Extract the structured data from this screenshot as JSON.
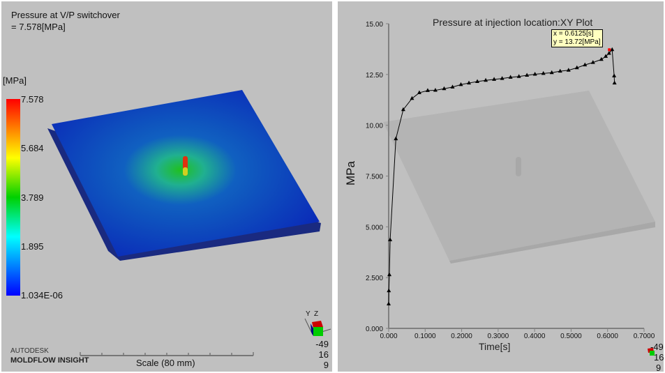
{
  "left": {
    "title": "Pressure at V/P switchover",
    "value": " = 7.578[MPa]",
    "unit": "[MPa]",
    "legend_ticks": [
      "7.578",
      "5.684",
      "3.789",
      "1.895",
      "1.034E-06"
    ],
    "brand_top": "AUTODESK",
    "brand_bottom": "MOLDFLOW INSIGHT",
    "scale_label": "Scale (80 mm)",
    "axis_labels": [
      "Y",
      "Z"
    ],
    "rotation": [
      "-49",
      "16",
      "9"
    ]
  },
  "right": {
    "rotation": [
      "-49",
      "16",
      "9"
    ],
    "tooltip": {
      "x": "x = 0.6125[s]",
      "y": "y = 13.72[MPa]"
    }
  },
  "chart_data": {
    "type": "line",
    "title": "Pressure at injection location:XY Plot",
    "xlabel": "Time[s]",
    "ylabel": "MPa",
    "xlim": [
      0,
      0.7
    ],
    "ylim": [
      0,
      15
    ],
    "xticks": [
      "0.000",
      "0.1000",
      "0.2000",
      "0.3000",
      "0.4000",
      "0.5000",
      "0.6000",
      "0.7000"
    ],
    "yticks": [
      "0.000",
      "2.500",
      "5.000",
      "7.500",
      "10.00",
      "12.50",
      "15.00"
    ],
    "marker": "triangle",
    "x": [
      0,
      0.0005,
      0.002,
      0.004,
      0.0197,
      0.04,
      0.064,
      0.084,
      0.107,
      0.128,
      0.152,
      0.175,
      0.198,
      0.22,
      0.243,
      0.266,
      0.289,
      0.311,
      0.334,
      0.357,
      0.379,
      0.401,
      0.424,
      0.447,
      0.47,
      0.493,
      0.516,
      0.538,
      0.56,
      0.583,
      0.595,
      0.604,
      0.6125,
      0.618,
      0.619
    ],
    "y": [
      1.2,
      1.85,
      2.64,
      4.36,
      9.33,
      10.77,
      11.32,
      11.6,
      11.71,
      11.72,
      11.8,
      11.88,
      12.0,
      12.08,
      12.15,
      12.21,
      12.26,
      12.3,
      12.36,
      12.4,
      12.46,
      12.51,
      12.55,
      12.59,
      12.66,
      12.71,
      12.83,
      12.97,
      13.09,
      13.24,
      13.39,
      13.54,
      13.72,
      12.43,
      12.08
    ],
    "highlighted_point": {
      "x": 0.6125,
      "y": 13.72
    }
  }
}
